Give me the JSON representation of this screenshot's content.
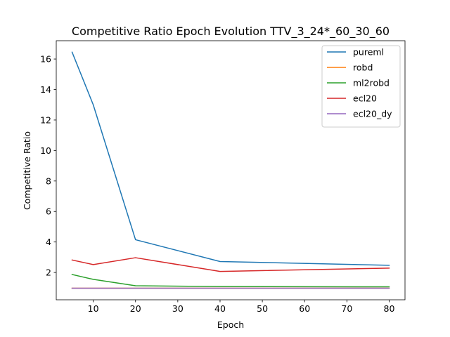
{
  "chart_data": {
    "type": "line",
    "title": "Competitive Ratio Epoch Evolution TTV_3_24*_60_30_60",
    "xlabel": "Epoch",
    "ylabel": "Competitive Ratio",
    "x": [
      5,
      10,
      20,
      40,
      80
    ],
    "xlim": [
      1.25,
      83.75
    ],
    "ylim": [
      0.21,
      17.2
    ],
    "xticks": [
      10,
      20,
      30,
      40,
      50,
      60,
      70,
      80
    ],
    "yticks": [
      2,
      4,
      6,
      8,
      10,
      12,
      14,
      16
    ],
    "grid": false,
    "legend_position": "top-right",
    "series": [
      {
        "name": "pureml",
        "color": "#1f77b4",
        "values": [
          16.45,
          13.0,
          4.15,
          2.72,
          2.47
        ]
      },
      {
        "name": "robd",
        "color": "#ff7f0e",
        "values": [
          0.97,
          0.97,
          0.97,
          0.97,
          0.97
        ]
      },
      {
        "name": "ml2robd",
        "color": "#2ca02c",
        "values": [
          1.87,
          1.55,
          1.13,
          1.08,
          1.06
        ]
      },
      {
        "name": "ecl20",
        "color": "#d62728",
        "values": [
          2.82,
          2.52,
          2.97,
          2.07,
          2.29
        ]
      },
      {
        "name": "ecl20_dy",
        "color": "#9467bd",
        "values": [
          0.97,
          0.97,
          0.97,
          0.97,
          0.97
        ]
      }
    ]
  }
}
